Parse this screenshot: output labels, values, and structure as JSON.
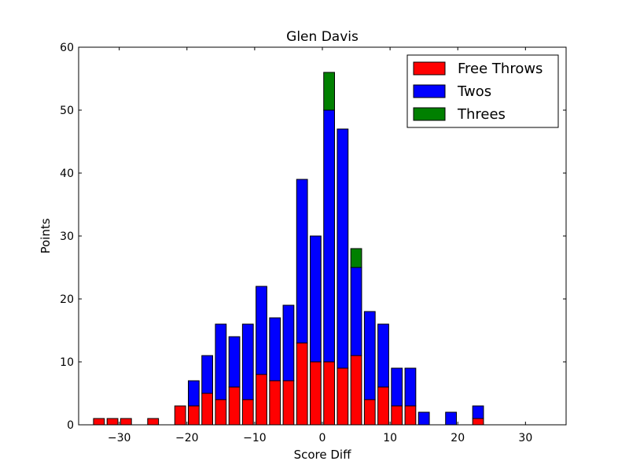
{
  "chart_data": {
    "type": "bar",
    "stacked": true,
    "title": "Glen Davis",
    "xlabel": "Score Diff",
    "ylabel": "Points",
    "xlim": [
      -36,
      36
    ],
    "ylim": [
      0,
      60
    ],
    "xticks": [
      -30,
      -20,
      -10,
      0,
      10,
      20,
      30
    ],
    "yticks": [
      0,
      10,
      20,
      30,
      40,
      50,
      60
    ],
    "xtick_labels": [
      "−30",
      "−20",
      "−10",
      "0",
      "10",
      "20",
      "30"
    ],
    "ytick_labels": [
      "0",
      "10",
      "20",
      "30",
      "40",
      "50",
      "60"
    ],
    "legend_position": "top-right",
    "grid": false,
    "x": [
      -33,
      -31,
      -29,
      -27,
      -25,
      -23,
      -21,
      -19,
      -17,
      -15,
      -13,
      -11,
      -9,
      -7,
      -5,
      -3,
      -1,
      1,
      3,
      5,
      7,
      9,
      11,
      13,
      15,
      17,
      19,
      21,
      23,
      25,
      27,
      29,
      31,
      33,
      35
    ],
    "series": [
      {
        "name": "Free Throws",
        "color": "#ff0000",
        "values": [
          1,
          1,
          1,
          0,
          1,
          0,
          3,
          3,
          5,
          4,
          6,
          4,
          8,
          7,
          7,
          13,
          10,
          10,
          9,
          11,
          4,
          6,
          3,
          3,
          0,
          0,
          0,
          0,
          1,
          0,
          0,
          0,
          0,
          0,
          0
        ]
      },
      {
        "name": "Twos",
        "color": "#0000ff",
        "values": [
          0,
          0,
          0,
          0,
          0,
          0,
          0,
          4,
          6,
          12,
          8,
          12,
          14,
          10,
          12,
          26,
          20,
          40,
          38,
          14,
          14,
          10,
          6,
          6,
          2,
          0,
          2,
          0,
          2,
          0,
          0,
          0,
          0,
          0,
          0
        ]
      },
      {
        "name": "Threes",
        "color": "#008000",
        "values": [
          0,
          0,
          0,
          0,
          0,
          0,
          0,
          0,
          0,
          0,
          0,
          0,
          0,
          0,
          0,
          0,
          0,
          6,
          0,
          3,
          0,
          0,
          0,
          0,
          0,
          0,
          0,
          0,
          0,
          0,
          0,
          0,
          0,
          0,
          0
        ]
      }
    ]
  }
}
